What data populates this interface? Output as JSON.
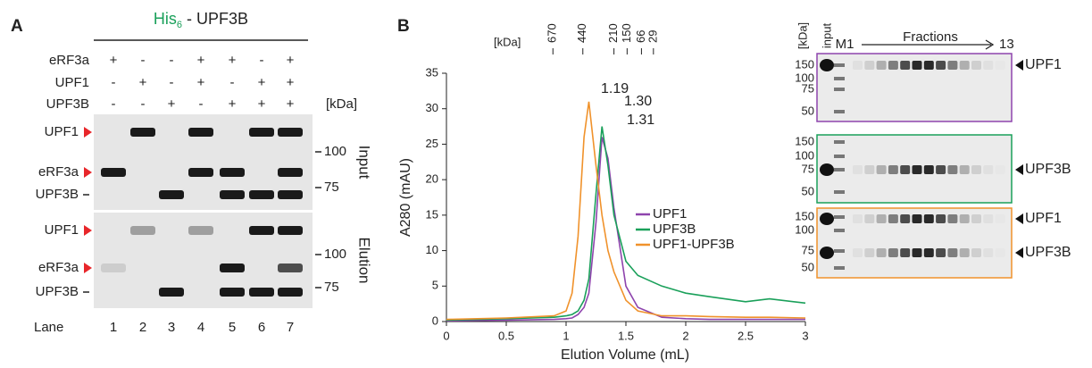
{
  "panel_a": {
    "label": "A",
    "title_parts": [
      "His",
      "6",
      " - UPF3B"
    ],
    "title_color": "#1aa05a",
    "conditions": [
      {
        "name": "eRF3a",
        "signs": [
          "+",
          "-",
          "-",
          "+",
          "+",
          "-",
          "+"
        ],
        "color": "#222222"
      },
      {
        "name": "UPF1",
        "signs": [
          "-",
          "+",
          "-",
          "+",
          "-",
          "+",
          "+"
        ],
        "color": "#222222"
      },
      {
        "name": "UPF3B",
        "signs": [
          "-",
          "-",
          "+",
          "-",
          "+",
          "+",
          "+"
        ],
        "color": "#1aa05a"
      }
    ],
    "kda_label": "[kDa]",
    "gels": [
      {
        "name": "Input",
        "markers": [
          100,
          75
        ],
        "bands": [
          "UPF1",
          "eRF3a",
          "UPF3B"
        ]
      },
      {
        "name": "Elution",
        "markers": [
          100,
          75
        ],
        "bands": [
          "UPF1",
          "eRF3a",
          "UPF3B"
        ]
      }
    ],
    "lane_label": "Lane",
    "lanes": [
      1,
      2,
      3,
      4,
      5,
      6,
      7
    ]
  },
  "panel_b_label": "B",
  "chart_data": {
    "type": "line",
    "x_label": "Elution Volume (mL)",
    "y_label": "A280 (mAU)",
    "xlim": [
      0,
      3
    ],
    "ylim": [
      0,
      35
    ],
    "xticks": [
      0,
      0.5,
      1,
      1.5,
      2,
      2.5,
      3
    ],
    "yticks": [
      0,
      5,
      10,
      15,
      20,
      25,
      30,
      35
    ],
    "top_axis_label": "[kDa]",
    "top_markers": [
      {
        "value": 0.89,
        "label": "670"
      },
      {
        "value": 1.14,
        "label": "440"
      },
      {
        "value": 1.4,
        "label": "210"
      },
      {
        "value": 1.51,
        "label": "150"
      },
      {
        "value": 1.63,
        "label": "66"
      },
      {
        "value": 1.73,
        "label": "29"
      }
    ],
    "x": [
      0,
      0.5,
      0.9,
      1.0,
      1.05,
      1.1,
      1.15,
      1.19,
      1.25,
      1.3,
      1.35,
      1.4,
      1.5,
      1.6,
      1.8,
      2.0,
      2.2,
      2.5,
      2.7,
      3.0
    ],
    "series": [
      {
        "name": "UPF1",
        "color": "#8e44ad",
        "values": [
          0.1,
          0.2,
          0.3,
          0.4,
          0.5,
          1,
          2,
          4,
          14,
          26,
          23,
          16,
          5,
          2,
          0.6,
          0.4,
          0.3,
          0.3,
          0.3,
          0.3
        ]
      },
      {
        "name": "UPF3B",
        "color": "#1aa05a",
        "values": [
          0.2,
          0.4,
          0.6,
          0.8,
          1,
          1.5,
          3,
          6,
          18,
          27.5,
          22,
          15,
          8.5,
          6.5,
          5,
          4,
          3.5,
          2.8,
          3.2,
          2.6
        ]
      },
      {
        "name": "UPF1-UPF3B",
        "color": "#f0922b",
        "values": [
          0.3,
          0.5,
          0.8,
          1.5,
          4,
          12,
          26,
          31,
          22,
          15,
          10,
          7,
          3,
          1.5,
          0.8,
          0.8,
          0.7,
          0.6,
          0.6,
          0.5
        ]
      }
    ],
    "annotations": [
      {
        "text": "1.19",
        "color": "#f0922b"
      },
      {
        "text": "1.30",
        "color": "#1aa05a"
      },
      {
        "text": "1.31",
        "color": "#8e44ad"
      }
    ],
    "legend": "right"
  },
  "panel_b_gels": {
    "kda_label": "[kDa]",
    "input_label": "input",
    "marker_label": "M1",
    "fractions_label": "Fractions",
    "last_fraction": 13,
    "gels": [
      {
        "markers": [
          150,
          100,
          75,
          50
        ],
        "bands": [
          "UPF1"
        ],
        "color": "#8e44ad"
      },
      {
        "markers": [
          150,
          100,
          75,
          50
        ],
        "bands": [
          "UPF3B"
        ],
        "color": "#1aa05a"
      },
      {
        "markers": [
          150,
          100,
          75,
          50
        ],
        "bands": [
          "UPF1",
          "UPF3B"
        ],
        "color": "#f0922b"
      }
    ]
  }
}
